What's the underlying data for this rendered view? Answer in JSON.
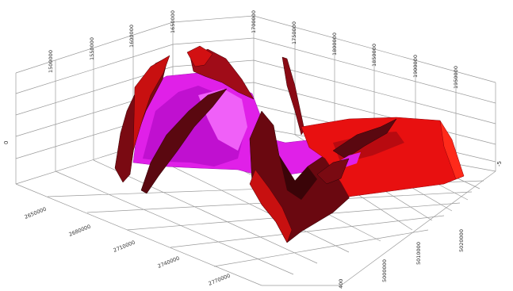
{
  "figure": {
    "colors": {
      "background": "#ffffff",
      "grid": "#9a9a9a",
      "surface_red": "#e81010",
      "surface_dark_red": "#7a0a12",
      "surface_magenta": "#e020e8"
    },
    "axes": {
      "top_ticks": [
        "1500000",
        "1550000",
        "1600000",
        "1650000",
        "1700000",
        "1750000",
        "1800000",
        "1850000",
        "1900000",
        "1950000"
      ],
      "left_ticks": [
        "2650000",
        "2680000",
        "2710000",
        "2740000",
        "2770000"
      ],
      "right_ticks": [
        "5000000",
        "5010000",
        "5020000"
      ],
      "left_vertical_label": "0",
      "right_vertical_label": "-5",
      "bottom_corner_label": "400"
    }
  }
}
